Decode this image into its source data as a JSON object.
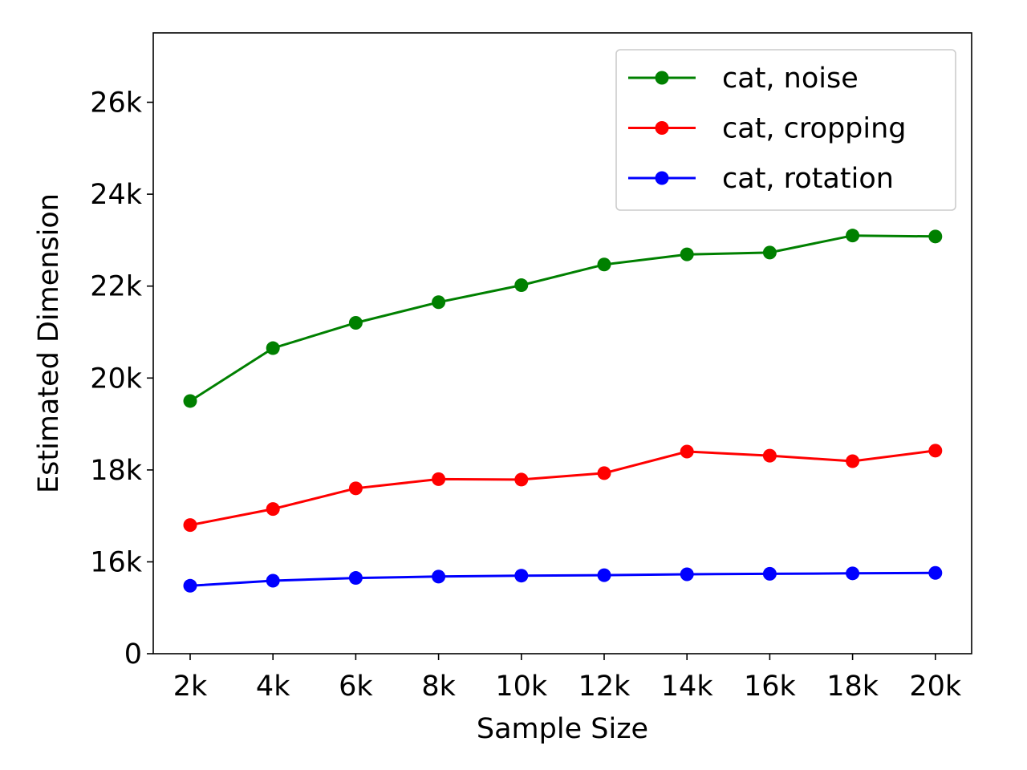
{
  "chart_data": {
    "type": "line",
    "title": "",
    "xlabel": "Sample Size",
    "ylabel": "Estimated Dimension",
    "categories": [
      "2k",
      "4k",
      "6k",
      "8k",
      "10k",
      "12k",
      "14k",
      "16k",
      "18k",
      "20k"
    ],
    "x": [
      2000,
      4000,
      6000,
      8000,
      10000,
      12000,
      14000,
      16000,
      18000,
      20000
    ],
    "y_ticks": [
      {
        "value": 0,
        "label": "0"
      },
      {
        "value": 16000,
        "label": "16k"
      },
      {
        "value": 18000,
        "label": "18k"
      },
      {
        "value": 20000,
        "label": "20k"
      },
      {
        "value": 22000,
        "label": "22k"
      },
      {
        "value": 24000,
        "label": "24k"
      },
      {
        "value": 26000,
        "label": "26k"
      }
    ],
    "y_axis_note": "broken scale: bottom tick 0 sits 2k below 16k",
    "ylim_display": [
      14000,
      27500
    ],
    "grid": false,
    "legend_position": "top-right",
    "series": [
      {
        "name": "cat, noise",
        "color": "#008000",
        "values": [
          19500,
          20650,
          21200,
          21650,
          22020,
          22470,
          22690,
          22730,
          23100,
          23080
        ]
      },
      {
        "name": "cat, cropping",
        "color": "#ff0000",
        "values": [
          16800,
          17150,
          17600,
          17800,
          17790,
          17930,
          18400,
          18310,
          18190,
          18420
        ]
      },
      {
        "name": "cat, rotation",
        "color": "#0000ff",
        "values": [
          15480,
          15590,
          15650,
          15680,
          15700,
          15710,
          15730,
          15740,
          15750,
          15760
        ]
      }
    ]
  }
}
